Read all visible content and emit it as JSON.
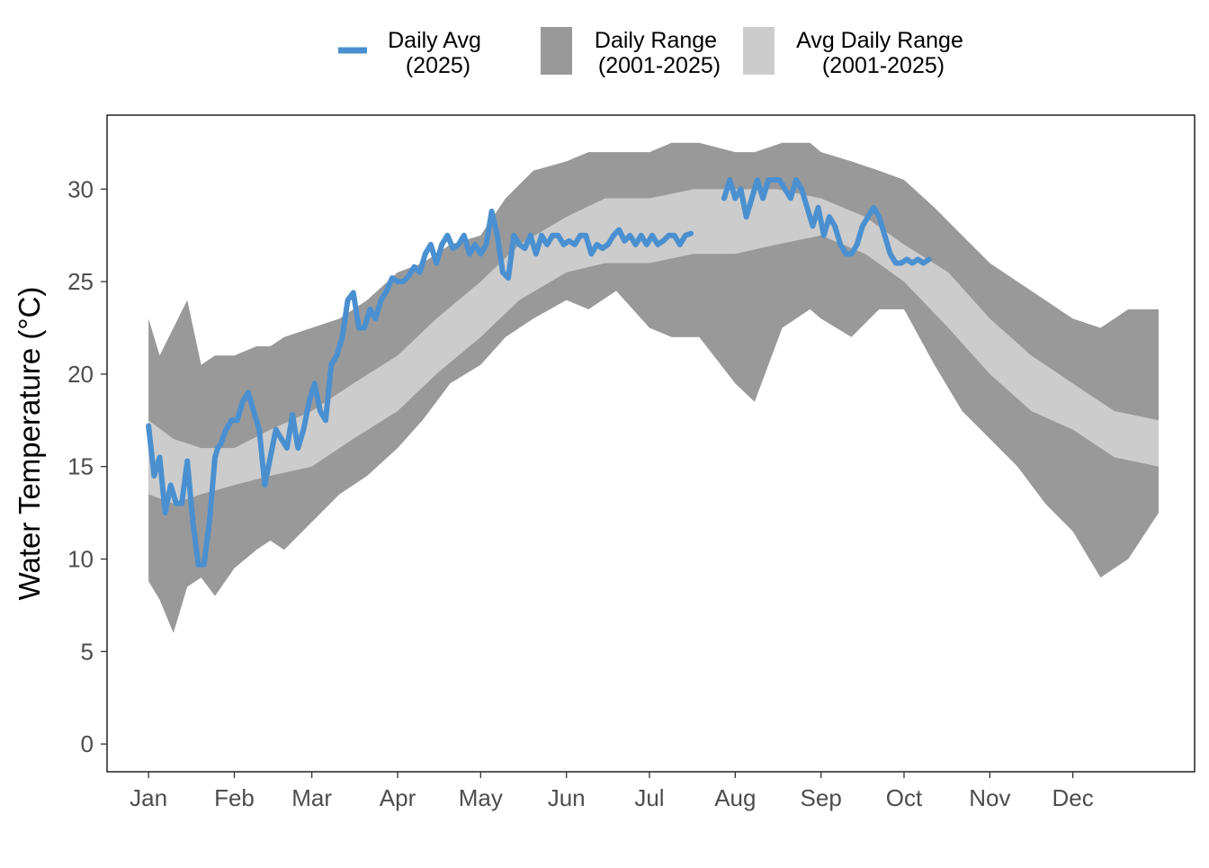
{
  "chart_data": {
    "type": "area",
    "title": "",
    "xlabel": "",
    "ylabel": "Water Temperature (°C)",
    "ylim": [
      -1.5,
      34
    ],
    "xlim": [
      -14,
      379
    ],
    "grid": false,
    "legend_position": "top",
    "y_ticks": [
      0,
      5,
      10,
      15,
      20,
      25,
      30
    ],
    "x_ticks": [
      {
        "day": 1,
        "label": "Jan"
      },
      {
        "day": 32,
        "label": "Feb"
      },
      {
        "day": 60,
        "label": "Mar"
      },
      {
        "day": 91,
        "label": "Apr"
      },
      {
        "day": 121,
        "label": "May"
      },
      {
        "day": 152,
        "label": "Jun"
      },
      {
        "day": 182,
        "label": "Jul"
      },
      {
        "day": 213,
        "label": "Aug"
      },
      {
        "day": 244,
        "label": "Sep"
      },
      {
        "day": 274,
        "label": "Oct"
      },
      {
        "day": 305,
        "label": "Nov"
      },
      {
        "day": 335,
        "label": "Dec"
      }
    ],
    "legend": [
      {
        "label_line1": "Daily Avg",
        "label_line2": "(2025)",
        "kind": "line",
        "color": "#4a90d0"
      },
      {
        "label_line1": "Daily Range",
        "label_line2": "(2001-2025)",
        "kind": "fill",
        "color": "#999999"
      },
      {
        "label_line1": "Avg Daily Range",
        "label_line2": "(2001-2025)",
        "kind": "fill",
        "color": "#cccccc"
      }
    ],
    "colors": {
      "daily_avg": "#4a90d0",
      "daily_range": "#999999",
      "avg_daily_range": "#cccccc",
      "axis": "#000000",
      "tick_text": "#4d4d4d"
    },
    "series": [
      {
        "name": "Daily Range (2001-2025)",
        "kind": "band",
        "x": [
          1,
          5,
          10,
          15,
          20,
          25,
          32,
          40,
          45,
          50,
          60,
          70,
          80,
          91,
          100,
          110,
          121,
          130,
          140,
          152,
          160,
          170,
          182,
          190,
          200,
          213,
          220,
          230,
          240,
          244,
          255,
          265,
          274,
          285,
          295,
          305,
          315,
          325,
          335,
          345,
          355,
          366
        ],
        "low": [
          8.8,
          7.8,
          6.0,
          8.5,
          9.0,
          8.0,
          9.5,
          10.5,
          11.0,
          10.5,
          12.0,
          13.5,
          14.5,
          16.0,
          17.5,
          19.5,
          20.5,
          22.0,
          23.0,
          24.0,
          23.5,
          24.5,
          22.5,
          22.0,
          22.0,
          19.5,
          18.5,
          22.5,
          23.5,
          23.0,
          22.0,
          23.5,
          23.5,
          20.5,
          18.0,
          16.5,
          15.0,
          13.0,
          11.5,
          9.0,
          10.0,
          12.5
        ],
        "high": [
          23.0,
          21.0,
          22.5,
          24.0,
          20.5,
          21.0,
          21.0,
          21.5,
          21.5,
          22.0,
          22.5,
          23.0,
          24.0,
          25.5,
          26.0,
          27.0,
          27.5,
          29.5,
          31.0,
          31.5,
          32.0,
          32.0,
          32.0,
          32.5,
          32.5,
          32.0,
          32.0,
          32.5,
          32.5,
          32.0,
          31.5,
          31.0,
          30.5,
          29.0,
          27.5,
          26.0,
          25.0,
          24.0,
          23.0,
          22.5,
          23.5,
          23.5
        ]
      },
      {
        "name": "Avg Daily Range (2001-2025)",
        "kind": "band",
        "x": [
          1,
          10,
          20,
          32,
          45,
          60,
          75,
          91,
          105,
          121,
          135,
          152,
          166,
          182,
          198,
          213,
          228,
          244,
          260,
          274,
          290,
          305,
          320,
          335,
          350,
          366
        ],
        "low": [
          13.5,
          13.0,
          13.5,
          14.0,
          14.5,
          15.0,
          16.5,
          18.0,
          20.0,
          22.0,
          24.0,
          25.5,
          26.0,
          26.0,
          26.5,
          26.5,
          27.0,
          27.5,
          26.5,
          25.0,
          22.5,
          20.0,
          18.0,
          17.0,
          15.5,
          15.0
        ],
        "high": [
          17.5,
          16.5,
          16.0,
          16.0,
          17.0,
          18.0,
          19.5,
          21.0,
          23.0,
          25.0,
          27.0,
          28.5,
          29.5,
          29.5,
          30.0,
          30.0,
          30.0,
          29.5,
          28.5,
          27.0,
          25.5,
          23.0,
          21.0,
          19.5,
          18.0,
          17.5
        ]
      },
      {
        "name": "Daily Avg (2025)",
        "kind": "line",
        "segments": [
          {
            "x": [
              1,
              3,
              5,
              7,
              9,
              11,
              13,
              15,
              17,
              19,
              21,
              23,
              25,
              26,
              27,
              29,
              31,
              33,
              35,
              37,
              39,
              41,
              43,
              45,
              47,
              49,
              51,
              53,
              55,
              57,
              59,
              61,
              63,
              65,
              67,
              69,
              71,
              73,
              75,
              77,
              79,
              81,
              83,
              85,
              87,
              89,
              91,
              93,
              95,
              97,
              99,
              101,
              103,
              105,
              107,
              109,
              111,
              113,
              115,
              117,
              119,
              121,
              123,
              125,
              127,
              129,
              131,
              133,
              135,
              137,
              139,
              141,
              143,
              145,
              147,
              149,
              151,
              153,
              155,
              157,
              159,
              161,
              163,
              165,
              167,
              169,
              171,
              173,
              175,
              177,
              179,
              181,
              183,
              185,
              187,
              189,
              191,
              193,
              195,
              197
            ],
            "y": [
              17.2,
              14.5,
              15.5,
              12.5,
              14.0,
              13.0,
              13.0,
              15.3,
              12.0,
              9.7,
              9.7,
              12.0,
              15.5,
              16.0,
              16.2,
              17.0,
              17.5,
              17.5,
              18.5,
              19.0,
              18.0,
              17.0,
              14.0,
              15.5,
              17.0,
              16.5,
              16.0,
              17.8,
              16.0,
              17.0,
              18.5,
              19.5,
              18.0,
              17.5,
              20.5,
              21.0,
              22.0,
              24.0,
              24.4,
              22.5,
              22.5,
              23.5,
              23.0,
              24.0,
              24.5,
              25.2,
              25.0,
              25.0,
              25.3,
              25.8,
              25.5,
              26.5,
              27.0,
              26.0,
              27.0,
              27.5,
              26.8,
              27.0,
              27.5,
              26.5,
              27.0,
              26.5,
              27.0,
              28.8,
              27.5,
              25.5,
              25.2,
              27.5,
              27.0,
              26.8,
              27.5,
              26.5,
              27.5,
              27.0,
              27.5,
              27.5,
              27.0,
              27.2,
              27.0,
              27.5,
              27.5,
              26.5,
              27.0,
              26.8,
              27.0,
              27.5,
              27.8,
              27.2,
              27.5,
              27.0,
              27.5,
              27.0,
              27.5,
              27.0,
              27.2,
              27.5,
              27.5,
              27.0,
              27.5,
              27.6
            ]
          },
          {
            "x": [
              209,
              211,
              213,
              215,
              217,
              219,
              221,
              223,
              225,
              227,
              229,
              231,
              233,
              235,
              237,
              239,
              241,
              243,
              245,
              247,
              249,
              251,
              253,
              255,
              257,
              259,
              261,
              263,
              265,
              267,
              269,
              271,
              273,
              275,
              277,
              279,
              281,
              283
            ],
            "y": [
              29.5,
              30.5,
              29.5,
              30.0,
              28.5,
              29.5,
              30.5,
              29.5,
              30.5,
              30.5,
              30.5,
              30.0,
              29.5,
              30.5,
              30.0,
              29.0,
              28.0,
              29.0,
              27.5,
              28.5,
              28.0,
              27.0,
              26.5,
              26.5,
              27.0,
              28.0,
              28.5,
              29.0,
              28.5,
              27.5,
              26.5,
              26.0,
              26.0,
              26.2,
              26.0,
              26.2,
              26.0,
              26.2
            ]
          }
        ]
      }
    ]
  }
}
